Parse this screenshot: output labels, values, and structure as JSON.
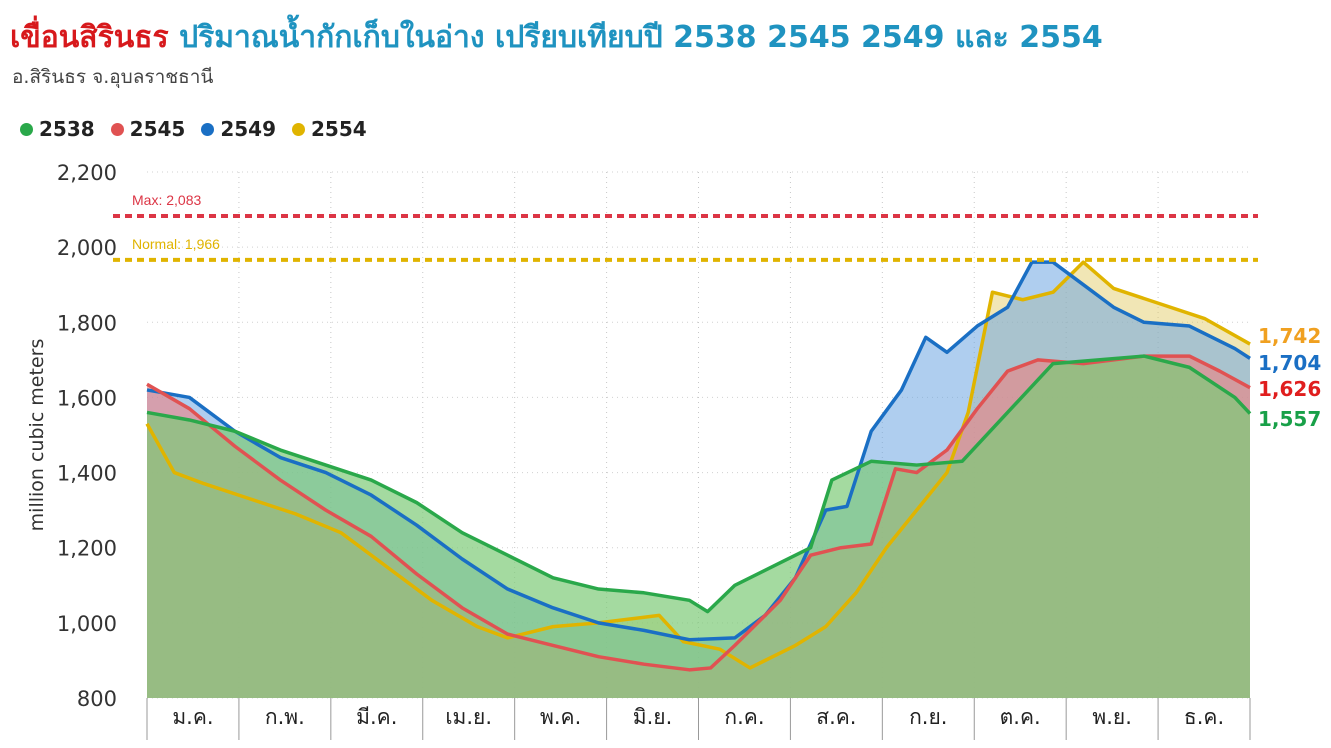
{
  "header": {
    "title_main": "เขื่อนสิรินธร",
    "title_rest": "ปริมาณน้ำกักเก็บในอ่าง เปรียบเทียบปี 2538 2545 2549 และ 2554",
    "subtitle": "อ.สิรินธร จ.อุบลราชธานี"
  },
  "chart_data": {
    "type": "area",
    "ylabel": "million cubic meters",
    "ylim": [
      800,
      2200
    ],
    "yticks": [
      800,
      1000,
      1200,
      1400,
      1600,
      1800,
      2000,
      2200
    ],
    "ytick_labels": [
      "800",
      "1,000",
      "1,200",
      "1,400",
      "1,600",
      "1,800",
      "2,000",
      "2,200"
    ],
    "months": [
      "ม.ค.",
      "ก.พ.",
      "มี.ค.",
      "เม.ย.",
      "พ.ค.",
      "มิ.ย.",
      "ก.ค.",
      "ส.ค.",
      "ก.ย.",
      "ต.ค.",
      "พ.ย.",
      "ธ.ค."
    ],
    "grid": true,
    "legend_position": "top-left",
    "reference_lines": [
      {
        "label": "Max: 2,083",
        "value": 2083,
        "color": "#dc3545"
      },
      {
        "label": "Normal: 1,966",
        "value": 1966,
        "color": "#e0b400"
      }
    ],
    "series": [
      {
        "name": "2538",
        "color": "#2aa84a",
        "end_label": "1,557",
        "end_label_color": "#18a048",
        "points": [
          [
            1,
            1560
          ],
          [
            15,
            1540
          ],
          [
            30,
            1510
          ],
          [
            45,
            1460
          ],
          [
            60,
            1420
          ],
          [
            75,
            1380
          ],
          [
            90,
            1320
          ],
          [
            105,
            1240
          ],
          [
            120,
            1180
          ],
          [
            135,
            1120
          ],
          [
            150,
            1090
          ],
          [
            165,
            1080
          ],
          [
            180,
            1060
          ],
          [
            186,
            1030
          ],
          [
            195,
            1100
          ],
          [
            210,
            1160
          ],
          [
            220,
            1200
          ],
          [
            227,
            1380
          ],
          [
            240,
            1430
          ],
          [
            255,
            1420
          ],
          [
            270,
            1430
          ],
          [
            285,
            1560
          ],
          [
            300,
            1690
          ],
          [
            315,
            1700
          ],
          [
            330,
            1710
          ],
          [
            345,
            1680
          ],
          [
            360,
            1600
          ],
          [
            365,
            1557
          ]
        ]
      },
      {
        "name": "2545",
        "color": "#e05252",
        "end_label": "1,626",
        "end_label_color": "#e01e1e",
        "points": [
          [
            1,
            1635
          ],
          [
            15,
            1570
          ],
          [
            30,
            1470
          ],
          [
            45,
            1380
          ],
          [
            60,
            1300
          ],
          [
            75,
            1230
          ],
          [
            90,
            1130
          ],
          [
            105,
            1040
          ],
          [
            120,
            970
          ],
          [
            135,
            940
          ],
          [
            150,
            910
          ],
          [
            165,
            890
          ],
          [
            180,
            875
          ],
          [
            187,
            880
          ],
          [
            195,
            940
          ],
          [
            210,
            1060
          ],
          [
            220,
            1180
          ],
          [
            230,
            1200
          ],
          [
            240,
            1210
          ],
          [
            248,
            1410
          ],
          [
            255,
            1400
          ],
          [
            265,
            1460
          ],
          [
            275,
            1570
          ],
          [
            285,
            1670
          ],
          [
            295,
            1700
          ],
          [
            310,
            1690
          ],
          [
            330,
            1710
          ],
          [
            345,
            1710
          ],
          [
            355,
            1670
          ],
          [
            365,
            1626
          ]
        ]
      },
      {
        "name": "2549",
        "color": "#1a6fc4",
        "end_label": "1,704",
        "end_label_color": "#1a6fc4",
        "points": [
          [
            1,
            1620
          ],
          [
            15,
            1600
          ],
          [
            30,
            1510
          ],
          [
            45,
            1440
          ],
          [
            60,
            1400
          ],
          [
            75,
            1340
          ],
          [
            90,
            1260
          ],
          [
            105,
            1170
          ],
          [
            120,
            1090
          ],
          [
            135,
            1040
          ],
          [
            150,
            1000
          ],
          [
            165,
            980
          ],
          [
            180,
            955
          ],
          [
            195,
            960
          ],
          [
            205,
            1020
          ],
          [
            215,
            1120
          ],
          [
            225,
            1300
          ],
          [
            232,
            1310
          ],
          [
            240,
            1510
          ],
          [
            250,
            1620
          ],
          [
            258,
            1760
          ],
          [
            265,
            1720
          ],
          [
            275,
            1790
          ],
          [
            285,
            1840
          ],
          [
            293,
            1960
          ],
          [
            300,
            1960
          ],
          [
            310,
            1900
          ],
          [
            320,
            1840
          ],
          [
            330,
            1800
          ],
          [
            345,
            1790
          ],
          [
            360,
            1730
          ],
          [
            365,
            1704
          ]
        ]
      },
      {
        "name": "2554",
        "color": "#e0b400",
        "end_label": "1,742",
        "end_label_color": "#f0a020",
        "points": [
          [
            1,
            1530
          ],
          [
            10,
            1400
          ],
          [
            20,
            1370
          ],
          [
            35,
            1330
          ],
          [
            50,
            1290
          ],
          [
            65,
            1240
          ],
          [
            80,
            1150
          ],
          [
            95,
            1060
          ],
          [
            110,
            990
          ],
          [
            120,
            960
          ],
          [
            135,
            990
          ],
          [
            150,
            1000
          ],
          [
            160,
            1010
          ],
          [
            170,
            1020
          ],
          [
            178,
            950
          ],
          [
            190,
            930
          ],
          [
            200,
            880
          ],
          [
            215,
            940
          ],
          [
            225,
            990
          ],
          [
            235,
            1080
          ],
          [
            245,
            1200
          ],
          [
            255,
            1300
          ],
          [
            265,
            1400
          ],
          [
            272,
            1560
          ],
          [
            280,
            1880
          ],
          [
            290,
            1860
          ],
          [
            300,
            1880
          ],
          [
            310,
            1960
          ],
          [
            320,
            1890
          ],
          [
            335,
            1850
          ],
          [
            350,
            1810
          ],
          [
            365,
            1742
          ]
        ]
      }
    ]
  }
}
